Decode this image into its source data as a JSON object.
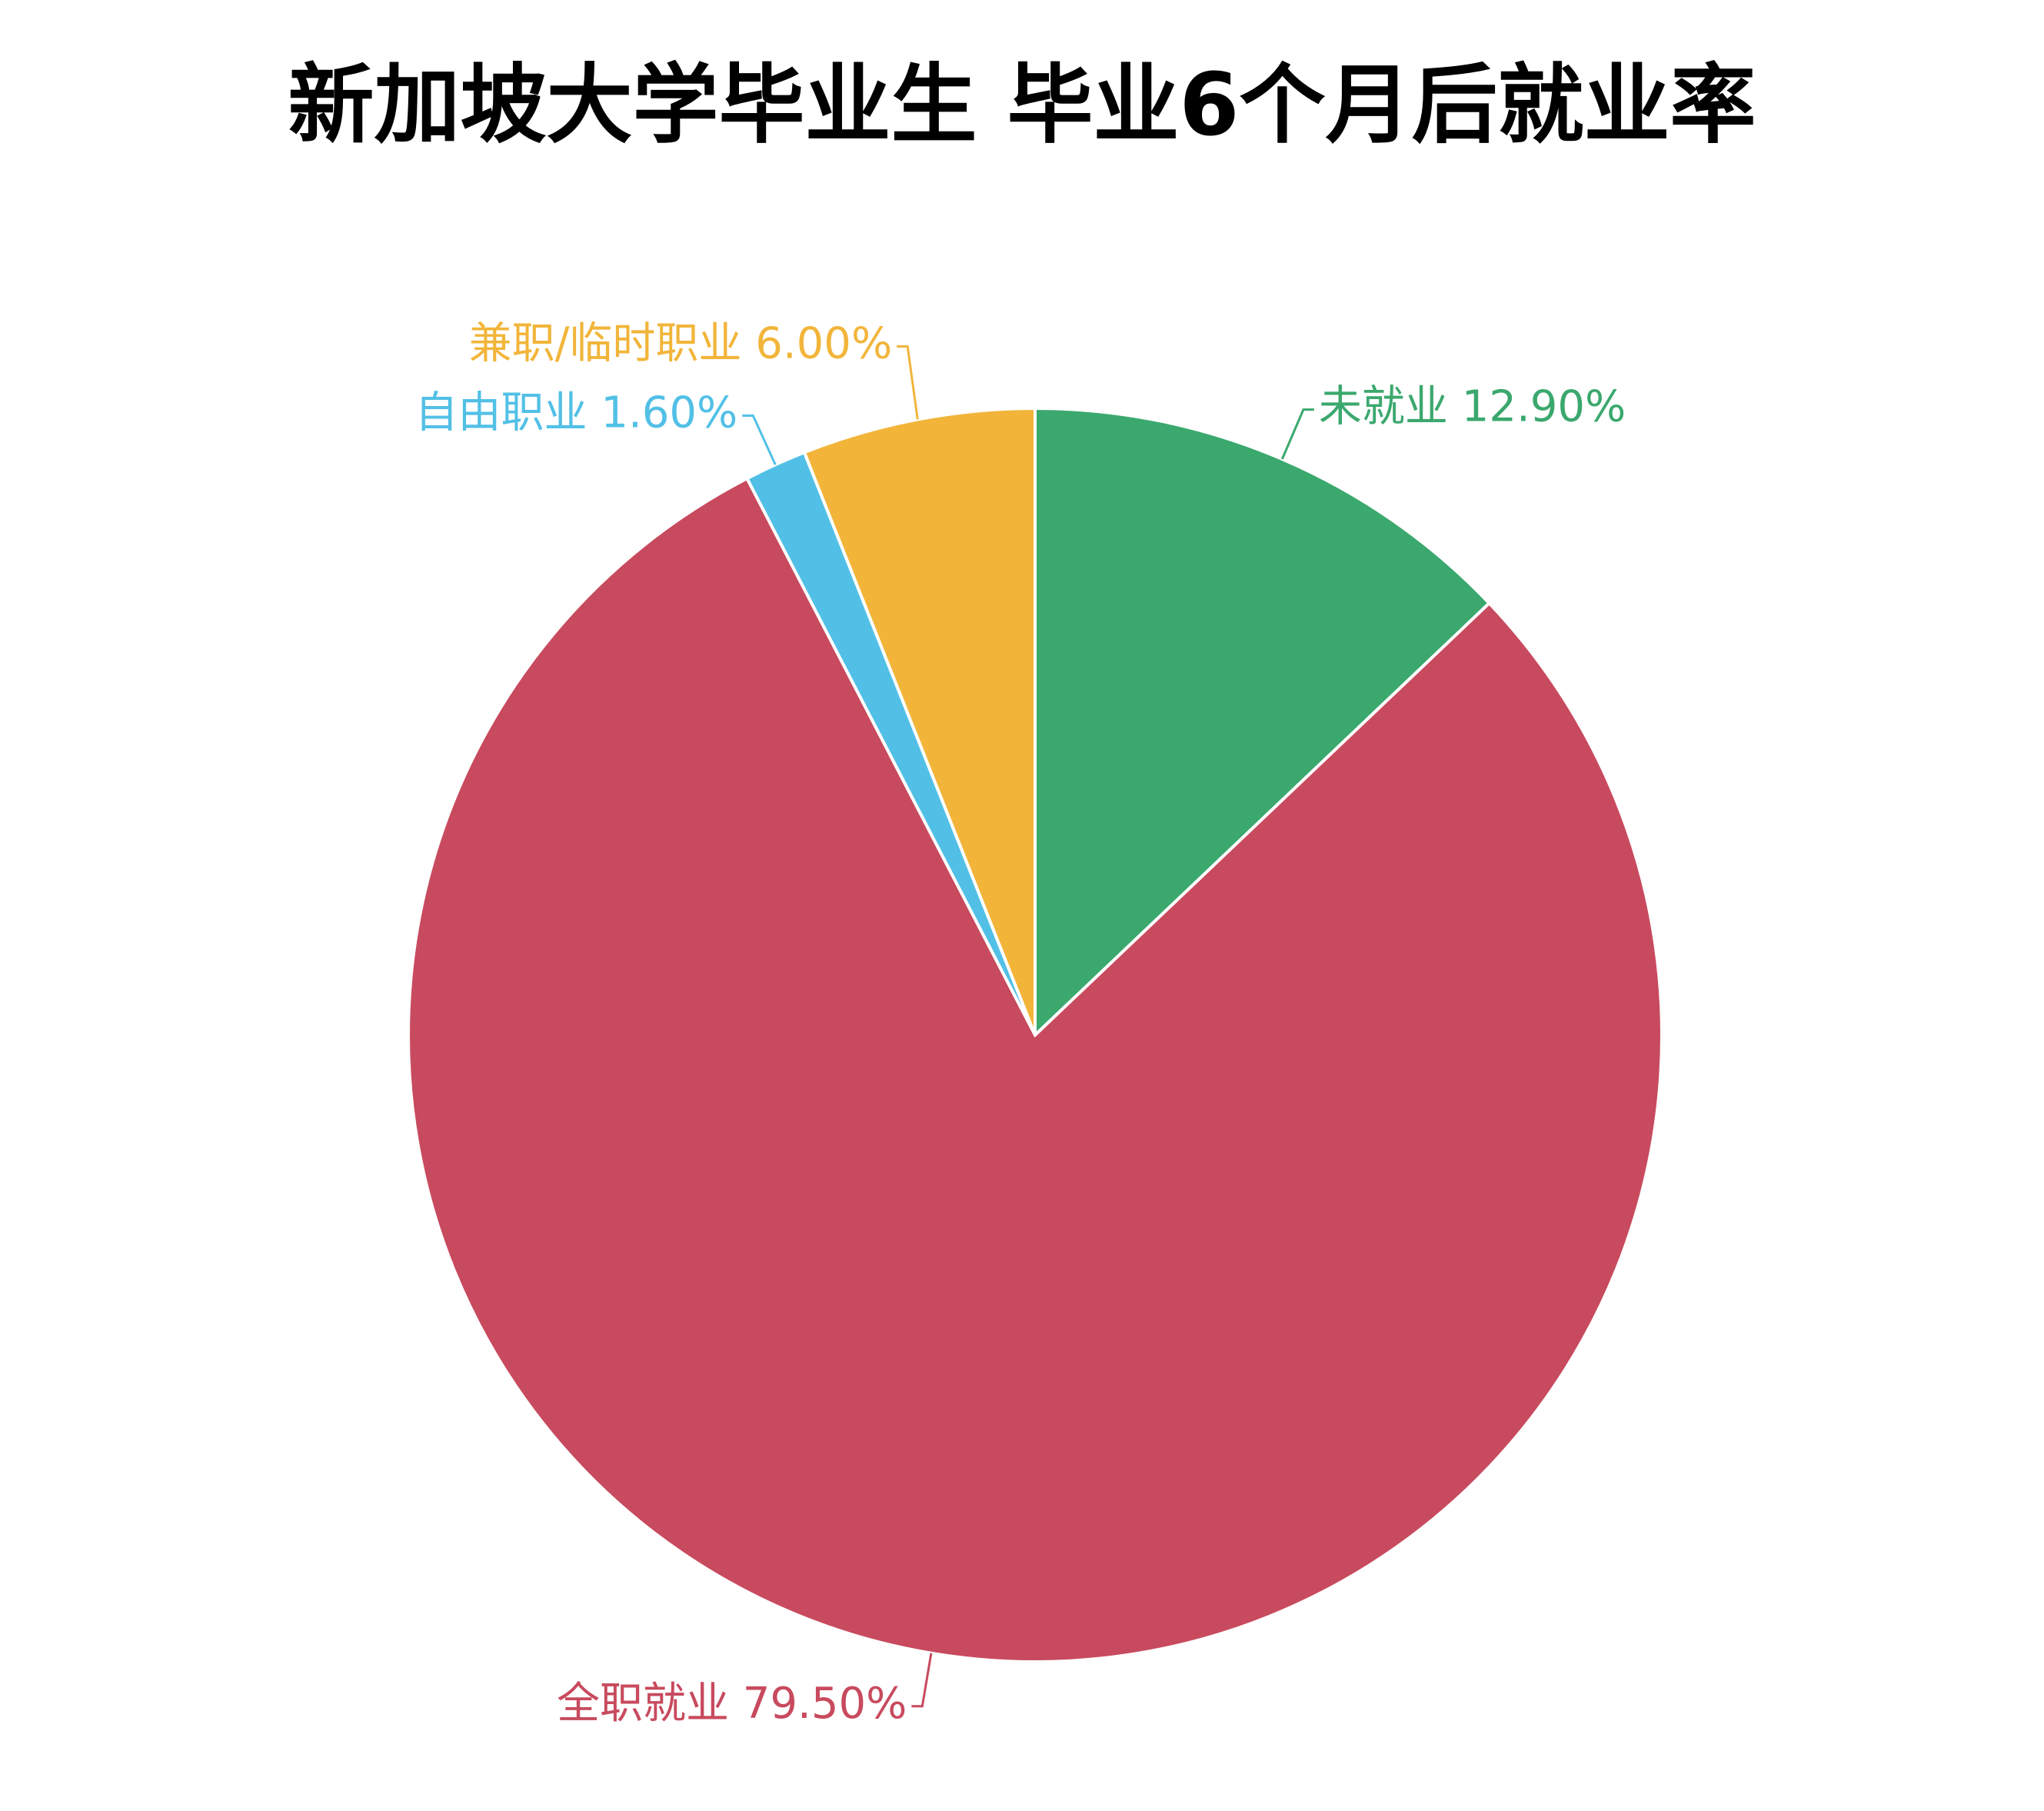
{
  "chart_data": {
    "type": "pie",
    "title": "新加坡大学毕业生 毕业6个月后就业率",
    "categories": [
      "未就业",
      "全职就业",
      "自由职业",
      "兼职/临时职业"
    ],
    "values": [
      12.9,
      79.5,
      1.6,
      6.0
    ],
    "value_labels": [
      "12.90%",
      "79.50%",
      "1.60%",
      "6.00%"
    ],
    "colors": [
      "#3ba86e",
      "#c84a5e",
      "#52c0e6",
      "#f2b53a"
    ]
  }
}
